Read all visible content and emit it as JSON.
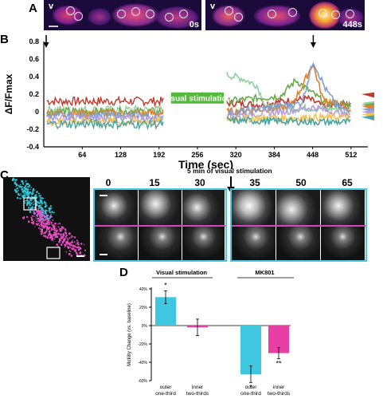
{
  "panel_a": {
    "letter": "A",
    "frames": [
      {
        "marker": "v",
        "time_label": "0s"
      },
      {
        "marker": "v",
        "time_label": "448s"
      }
    ]
  },
  "panel_b": {
    "letter": "B"
  },
  "panel_c": {
    "letter": "C",
    "stim_text": "5 min of visual stimulation",
    "frame_times": [
      "0",
      "15",
      "30",
      "35",
      "50",
      "65"
    ],
    "colors": {
      "outer_frame": "#4cc6e3",
      "inner_frame": "#d248b8",
      "cyan_cells": "#2fc6d8",
      "magenta_cells": "#e64fc4"
    }
  },
  "panel_d": {
    "letter": "D"
  },
  "chart_data": [
    {
      "type": "line",
      "panel": "B",
      "xlabel": "Time (sec)",
      "ylabel": "ΔF/Fmax",
      "xlim": [
        0,
        540
      ],
      "ylim": [
        -0.4,
        0.8
      ],
      "xticks": [
        64,
        128,
        192,
        256,
        320,
        384,
        448,
        512
      ],
      "yticks": [
        -0.4,
        -0.2,
        0.0,
        0.2,
        0.4,
        0.6,
        0.8
      ],
      "ytick_labels": [
        "-0.4",
        "-0.2",
        "0",
        "0.2",
        "0.4",
        "0.6",
        "0.8"
      ],
      "gap": [
        200,
        305
      ],
      "annotation": "Visual stimulation",
      "arrows_at_x": [
        4,
        449
      ],
      "series": [
        {
          "color": "#c0392b",
          "baseline": 0.12,
          "evoked": [
            [
              305,
              0.1
            ],
            [
              360,
              0.08
            ],
            [
              400,
              0.12
            ],
            [
              440,
              0.15
            ],
            [
              470,
              0.05
            ],
            [
              512,
              0.1
            ]
          ]
        },
        {
          "color": "#8fd19e",
          "baseline": 0.02,
          "evoked": [
            [
              305,
              0.42
            ],
            [
              330,
              0.38
            ],
            [
              355,
              0.3
            ],
            [
              370,
              0.05
            ],
            [
              512,
              0.03
            ]
          ]
        },
        {
          "color": "#6aa84f",
          "baseline": 0.0,
          "evoked": [
            [
              305,
              0.12
            ],
            [
              395,
              0.18
            ],
            [
              420,
              0.36
            ],
            [
              440,
              0.25
            ],
            [
              470,
              0.1
            ],
            [
              512,
              0.08
            ]
          ]
        },
        {
          "color": "#e67e22",
          "baseline": -0.02,
          "evoked": [
            [
              305,
              0.0
            ],
            [
              410,
              0.05
            ],
            [
              430,
              0.28
            ],
            [
              448,
              0.55
            ],
            [
              465,
              0.15
            ],
            [
              512,
              0.02
            ]
          ]
        },
        {
          "color": "#7f9fd6",
          "baseline": -0.05,
          "evoked": [
            [
              305,
              -0.02
            ],
            [
              430,
              0.1
            ],
            [
              449,
              0.58
            ],
            [
              470,
              0.25
            ],
            [
              490,
              0.05
            ],
            [
              512,
              0.0
            ]
          ]
        },
        {
          "color": "#b39ddb",
          "baseline": -0.08,
          "evoked": [
            [
              305,
              -0.05
            ],
            [
              400,
              0.0
            ],
            [
              450,
              0.05
            ],
            [
              512,
              -0.05
            ]
          ]
        },
        {
          "color": "#f2c14e",
          "baseline": -0.11,
          "evoked": [
            [
              305,
              -0.08
            ],
            [
              512,
              -0.06
            ]
          ]
        },
        {
          "color": "#4aa3a1",
          "baseline": -0.14,
          "evoked": [
            [
              305,
              -0.1
            ],
            [
              512,
              -0.12
            ]
          ]
        }
      ]
    },
    {
      "type": "bar",
      "panel": "D",
      "ylabel": "Motility Change (vs. baseline)",
      "ylim": [
        -60,
        40
      ],
      "yticks": [
        -60,
        -40,
        -20,
        0,
        20,
        40
      ],
      "ytick_labels": [
        "-60%",
        "-40%",
        "-20%",
        "0%",
        "20%",
        "40%"
      ],
      "groups": [
        {
          "name": "Visual stimulation",
          "bars": [
            {
              "label": "outer one-third",
              "value": 31,
              "error": 7,
              "color": "#3fc6e0",
              "significance": "*"
            },
            {
              "label": "inner two-thirds",
              "value": -2,
              "error": 9,
              "color": "#e83fa5",
              "significance": ""
            }
          ]
        },
        {
          "name": "MK801",
          "bars": [
            {
              "label": "outer one-third",
              "value": -53,
              "error": 9,
              "color": "#3fc6e0",
              "significance": "*"
            },
            {
              "label": "inner two-thirds",
              "value": -30,
              "error": 6,
              "color": "#e83fa5",
              "significance": "**"
            }
          ]
        }
      ]
    }
  ]
}
